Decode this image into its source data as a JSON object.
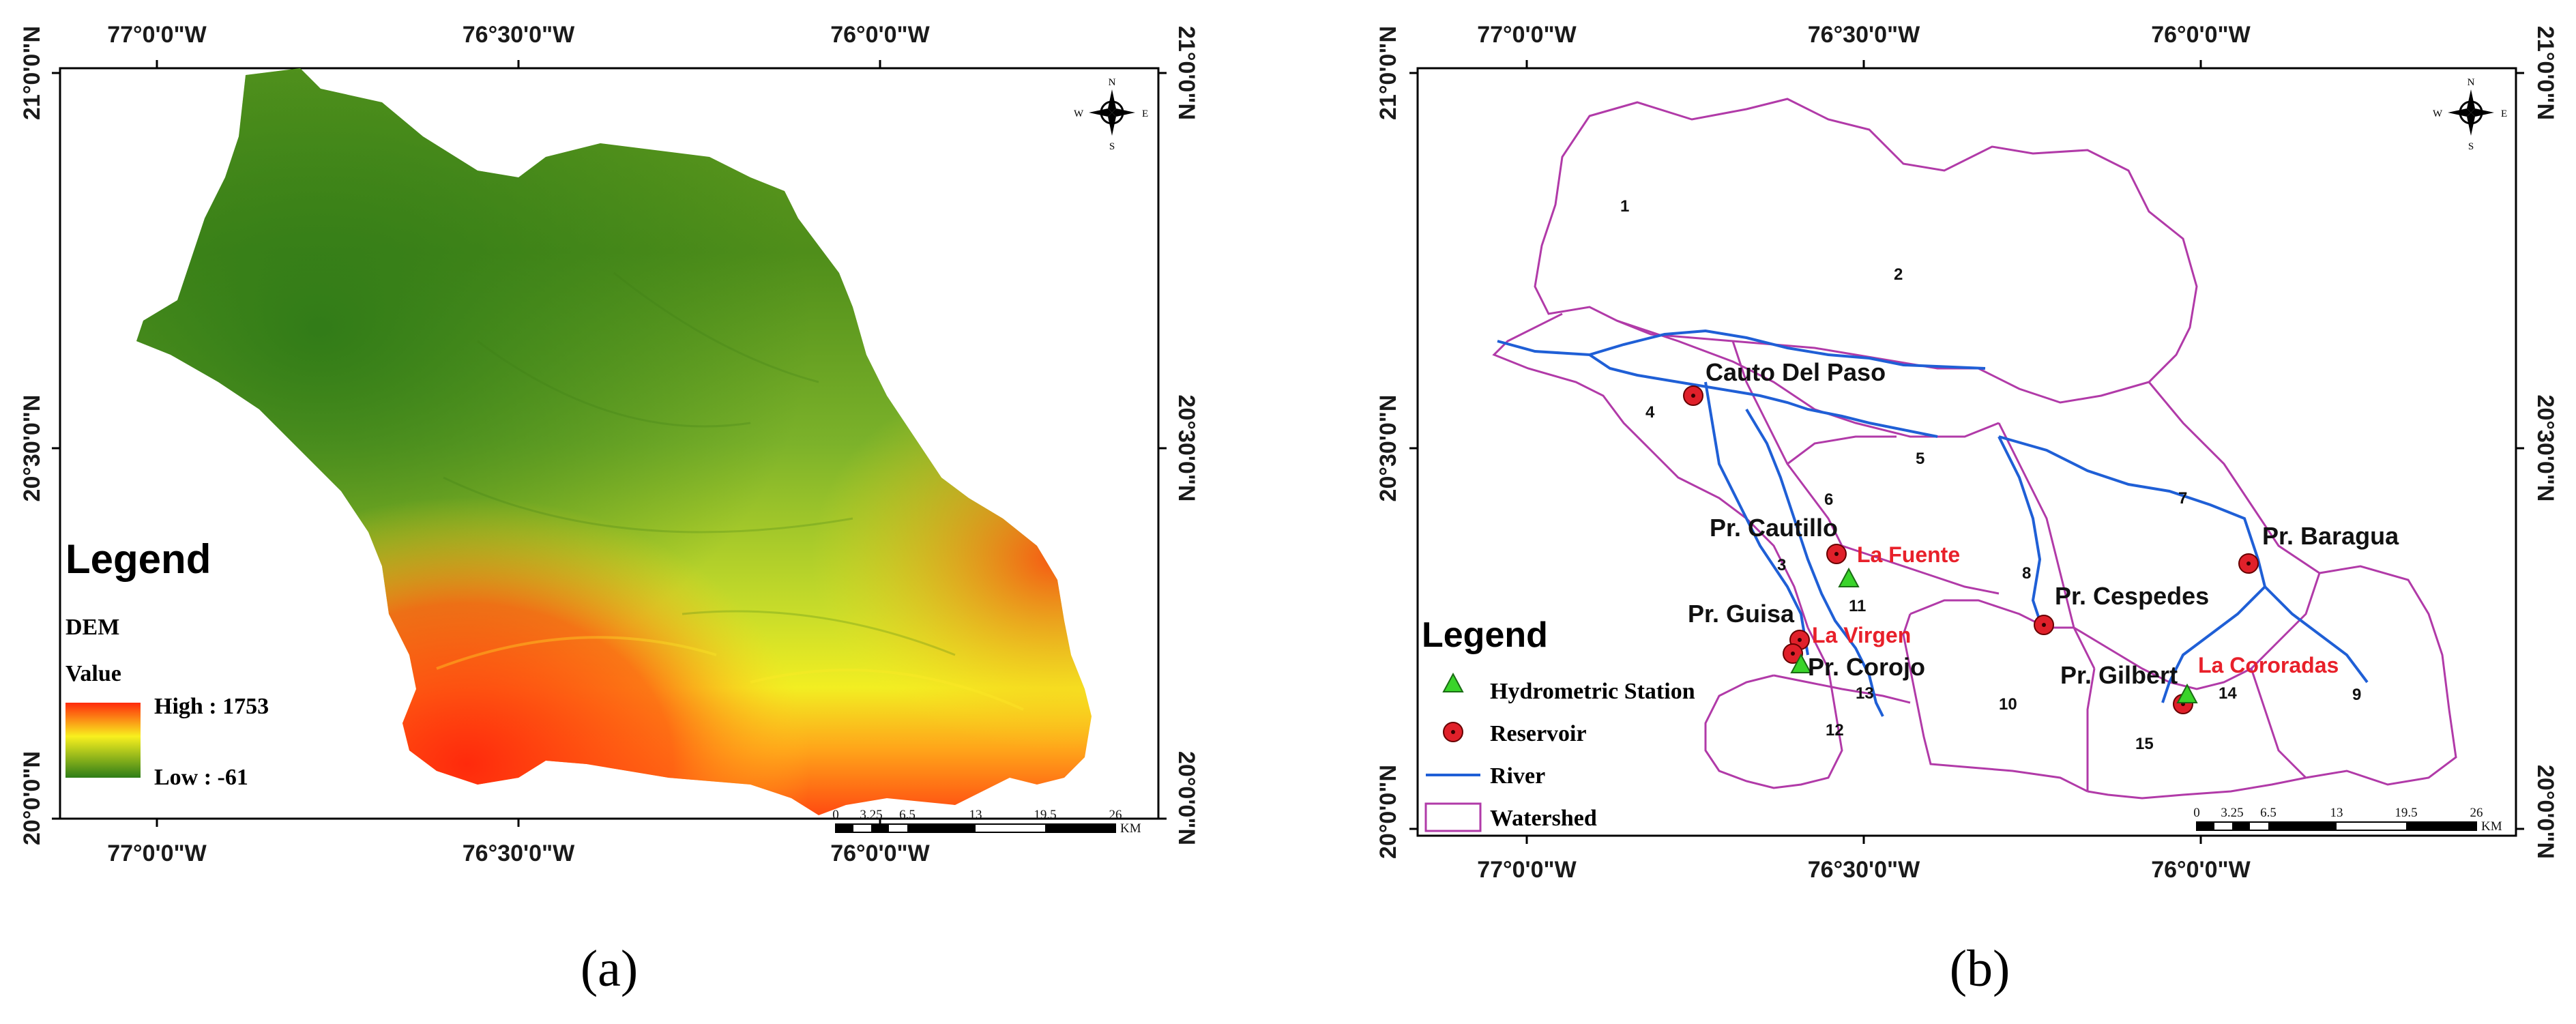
{
  "panel_a": {
    "label": "(a)",
    "top_ticks": [
      "77°0'0\"W",
      "76°30'0\"W",
      "76°0'0\"W"
    ],
    "bottom_ticks": [
      "77°0'0\"W",
      "76°30'0\"W",
      "76°0'0\"W"
    ],
    "left_ticks": [
      "21°0'0\"N",
      "20°30'0\"N",
      "20°0'0\"N"
    ],
    "right_ticks": [
      "21°0'0\"N",
      "20°30'0\"N",
      "20°0'0\"N"
    ],
    "legend": {
      "title": "Legend",
      "layer": "DEM",
      "field": "Value",
      "high": "High : 1753",
      "low": "Low : -61"
    },
    "scale": {
      "ticks": [
        "0",
        "3.25",
        "6.5",
        "13",
        "19.5",
        "26"
      ],
      "unit": "KM"
    },
    "compass": {
      "n": "N",
      "s": "S",
      "e": "E",
      "w": "W"
    },
    "colors": {
      "low": "#2e7d18",
      "mid": "#f5f51e",
      "high": "#ff3a10",
      "frame": "#000000"
    }
  },
  "panel_b": {
    "label": "(b)",
    "top_ticks": [
      "77°0'0\"W",
      "76°30'0\"W",
      "76°0'0\"W"
    ],
    "bottom_ticks": [
      "77°0'0\"W",
      "76°30'0\"W",
      "76°0'0\"W"
    ],
    "left_ticks": [
      "21°0'0\"N",
      "20°30'0\"N",
      "20°0'0\"N"
    ],
    "right_ticks": [
      "21°0'0\"N",
      "20°30'0\"N",
      "20°0'0\"N"
    ],
    "legend": {
      "title": "Legend",
      "items": [
        "Hydrometric Station",
        "Reservoir",
        "River",
        "Watershed"
      ]
    },
    "sites": [
      {
        "name": "Cauto Del Paso",
        "color": "black",
        "kind": "reservoir"
      },
      {
        "name": "Pr. Cautillo",
        "color": "black",
        "kind": "reservoir"
      },
      {
        "name": "La Fuente",
        "color": "red",
        "kind": "station"
      },
      {
        "name": "Pr. Guisa",
        "color": "black",
        "kind": "reservoir"
      },
      {
        "name": "La Virgen",
        "color": "red",
        "kind": "reservoir"
      },
      {
        "name": "Pr. Corojo",
        "color": "black",
        "kind": "station"
      },
      {
        "name": "Pr. Cespedes",
        "color": "black",
        "kind": "reservoir"
      },
      {
        "name": "Pr. Baragua",
        "color": "black",
        "kind": "reservoir"
      },
      {
        "name": "Pr. Gilbert",
        "color": "black",
        "kind": "reservoir"
      },
      {
        "name": "La Cororadas",
        "color": "red",
        "kind": "station"
      }
    ],
    "watershed_numbers": [
      "1",
      "2",
      "3",
      "4",
      "5",
      "6",
      "7",
      "8",
      "9",
      "10",
      "11",
      "12",
      "13",
      "14",
      "15"
    ],
    "scale": {
      "ticks": [
        "0",
        "3.25",
        "6.5",
        "13",
        "19.5",
        "26"
      ],
      "unit": "KM"
    },
    "compass": {
      "n": "N",
      "s": "S",
      "e": "E",
      "w": "W"
    },
    "colors": {
      "river": "#1f5fd6",
      "watershed": "#b13aa8",
      "reservoir": "#e0202a",
      "station": "#39d42a"
    }
  }
}
